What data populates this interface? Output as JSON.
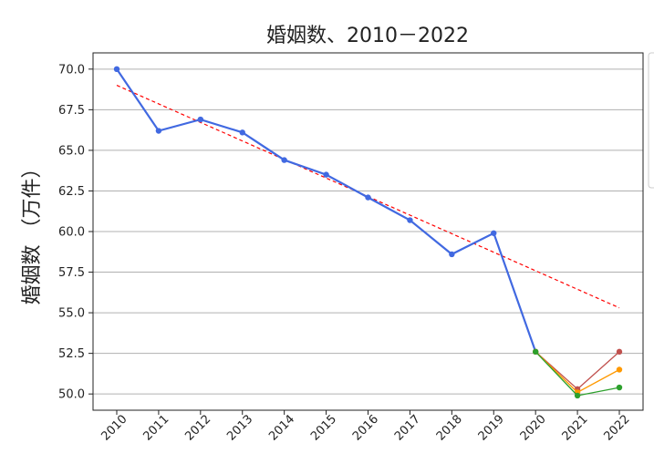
{
  "chart_data": {
    "type": "line",
    "title": "婚姻数、2010－2022",
    "xlabel": "",
    "ylabel": "婚姻数 （万件）",
    "x": [
      "2010",
      "2011",
      "2012",
      "2013",
      "2014",
      "2015",
      "2016",
      "2017",
      "2018",
      "2019",
      "2020",
      "2021",
      "2022"
    ],
    "ylim": [
      49.0,
      71.0
    ],
    "yticks": [
      "70.0",
      "67.5",
      "65.0",
      "62.5",
      "60.0",
      "57.5",
      "55.0",
      "52.5",
      "50.0"
    ],
    "grid": "horizontal",
    "series": [
      {
        "color": "#4169e1",
        "style": "solid-markers",
        "x": [
          "2010",
          "2011",
          "2012",
          "2013",
          "2014",
          "2015",
          "2016",
          "2017",
          "2018",
          "2019",
          "2020"
        ],
        "values": [
          70.0,
          66.2,
          66.9,
          66.1,
          64.4,
          63.5,
          62.1,
          60.7,
          58.6,
          59.9,
          52.6
        ]
      },
      {
        "color": "#ff0000",
        "style": "dashed",
        "x": [
          "2010",
          "2022"
        ],
        "values": [
          69.0,
          55.3
        ]
      },
      {
        "color": "#c0504d",
        "style": "solid-markers",
        "x": [
          "2020",
          "2021",
          "2022"
        ],
        "values": [
          52.6,
          50.3,
          52.6
        ]
      },
      {
        "color": "#ff9900",
        "style": "solid-markers",
        "x": [
          "2020",
          "2021",
          "2022"
        ],
        "values": [
          52.6,
          50.1,
          51.5
        ]
      },
      {
        "color": "#2ca02c",
        "style": "solid-markers",
        "x": [
          "2020",
          "2021",
          "2022"
        ],
        "values": [
          52.6,
          49.9,
          50.4
        ]
      }
    ]
  }
}
